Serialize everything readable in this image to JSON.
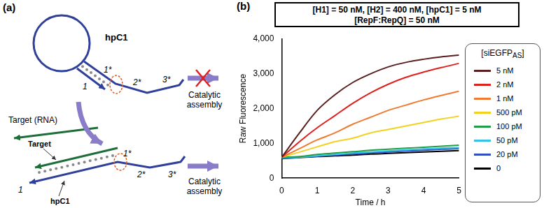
{
  "panel_a": {
    "label": "(a)",
    "top": {
      "hairpin": "hpC1",
      "domains": [
        "1",
        "1*",
        "2*",
        "3*"
      ],
      "output": "Catalytic assembly"
    },
    "input": "Target (RNA)",
    "bottom": {
      "target": "Target",
      "hairpin": "hpC1",
      "domains": [
        "1",
        "1*",
        "2*",
        "3*"
      ],
      "output": "Catalytic assembly"
    }
  },
  "chart_data": {
    "type": "line",
    "annotations": {
      "panel": "(b)",
      "conditions": [
        "[H1] = 50 nM, [H2] = 400 nM, [hpC1] = 5 nM",
        "[RepF:RepQ] = 50 nM"
      ]
    },
    "x_label": "Time / h",
    "y_label": "Raw Fluorescence",
    "legend_title": {
      "text": "[siEGFP",
      "subscript": "AS",
      "after": "]"
    },
    "legend": "right",
    "grid": false,
    "marker": "none",
    "x": [
      0,
      0.5,
      1,
      1.5,
      2,
      2.5,
      3,
      3.5,
      4,
      4.5,
      5
    ],
    "xlim": [
      0,
      5
    ],
    "xticks": [
      0,
      1,
      2,
      3,
      4,
      5
    ],
    "ylim": [
      0,
      4000
    ],
    "yticks": [
      0,
      1000,
      2000,
      3000,
      4000
    ],
    "series": [
      {
        "name": "5 nM",
        "color": "#5a1e1e",
        "values": [
          600,
          1300,
          1950,
          2400,
          2750,
          3000,
          3200,
          3330,
          3420,
          3490,
          3540
        ]
      },
      {
        "name": "2 nM",
        "color": "#e0201c",
        "values": [
          600,
          1050,
          1450,
          1800,
          2150,
          2450,
          2700,
          2900,
          3050,
          3180,
          3300
        ]
      },
      {
        "name": "1 nM",
        "color": "#f07a30",
        "values": [
          600,
          850,
          1100,
          1300,
          1550,
          1750,
          1950,
          2100,
          2250,
          2380,
          2500
        ]
      },
      {
        "name": "500 pM",
        "color": "#f2d21e",
        "values": [
          600,
          750,
          900,
          1050,
          1150,
          1300,
          1400,
          1500,
          1600,
          1700,
          1780
        ]
      },
      {
        "name": "100 pM",
        "color": "#1f9e45",
        "values": [
          600,
          620,
          680,
          720,
          760,
          800,
          830,
          860,
          890,
          920,
          950
        ]
      },
      {
        "name": "50 pM",
        "color": "#35c2e6",
        "values": [
          580,
          600,
          640,
          680,
          720,
          750,
          780,
          810,
          840,
          860,
          880
        ]
      },
      {
        "name": "20 pM",
        "color": "#2f4fbf",
        "values": [
          580,
          600,
          630,
          660,
          690,
          720,
          750,
          780,
          800,
          830,
          850
        ]
      },
      {
        "name": "0",
        "color": "#000000",
        "values": [
          560,
          590,
          620,
          640,
          660,
          690,
          710,
          730,
          750,
          770,
          790
        ]
      }
    ]
  }
}
